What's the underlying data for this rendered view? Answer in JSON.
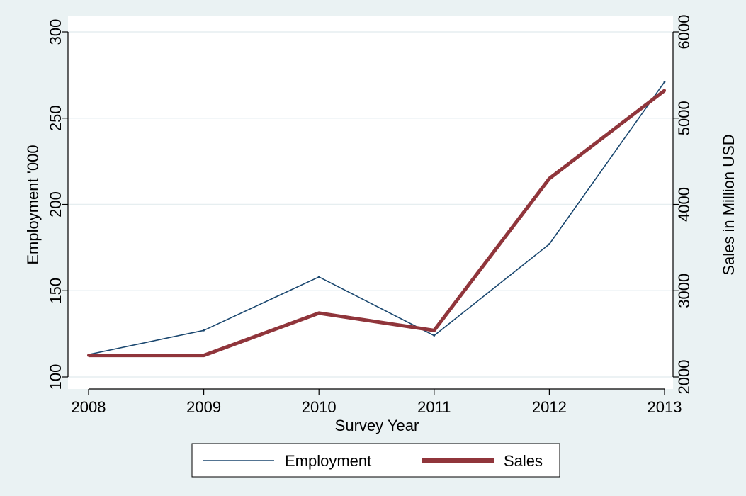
{
  "colors": {
    "background": "#eaf2f3",
    "plot_background": "#ffffff",
    "grid": "#e6eef0",
    "employment": "#1a476f",
    "sales": "#90353b"
  },
  "chart_data": {
    "type": "line",
    "title": "",
    "xlabel": "Survey Year",
    "ylabel": "Employment '000",
    "y2label": "Sales in Million USD",
    "x": [
      2008,
      2009,
      2010,
      2011,
      2012,
      2013
    ],
    "x_ticks": [
      "2008",
      "2009",
      "2010",
      "2011",
      "2012",
      "2013"
    ],
    "y_ticks": [
      "100",
      "150",
      "200",
      "250",
      "300"
    ],
    "y2_ticks": [
      "2000",
      "3000",
      "4000",
      "5000",
      "6000"
    ],
    "ylim": [
      100,
      300
    ],
    "y2lim": [
      2000,
      6000
    ],
    "grid": true,
    "legend_position": "bottom",
    "series": [
      {
        "name": "Employment",
        "axis": "left",
        "values": [
          113,
          127,
          158,
          124,
          177,
          271
        ]
      },
      {
        "name": "Sales",
        "axis": "right",
        "values": [
          2250,
          2250,
          2740,
          2540,
          4300,
          5320
        ]
      }
    ]
  }
}
